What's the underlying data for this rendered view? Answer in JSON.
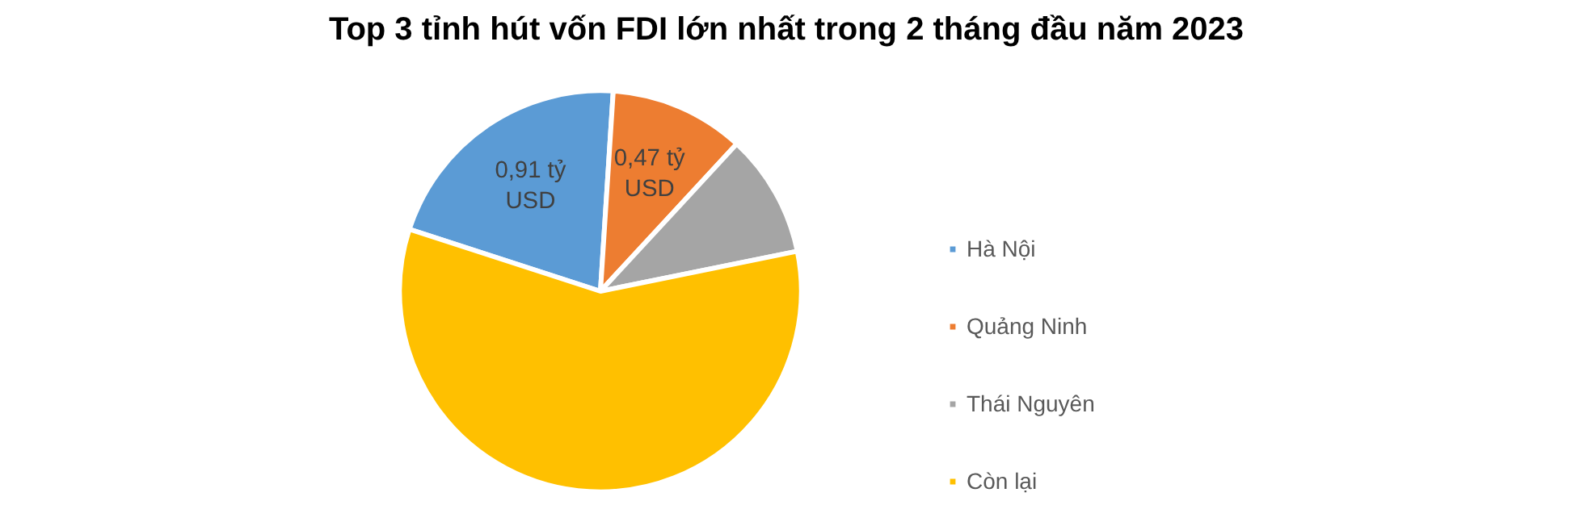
{
  "chart_data": {
    "type": "pie",
    "title": "Top 3 tỉnh hút vốn FDI lớn nhất trong 2 tháng đầu năm 2023",
    "categories": [
      "Hà Nội",
      "Quảng Ninh",
      "Thái Nguyên",
      "Còn lại"
    ],
    "values": [
      0.91,
      0.47,
      0.43,
      2.52
    ],
    "colors": [
      "#5b9bd5",
      "#ed7d31",
      "#a5a5a5",
      "#ffc000"
    ],
    "value_labels": [
      "0,91 tỷ USD",
      "0,47 tỷ USD",
      null,
      null
    ],
    "legend": "right"
  }
}
